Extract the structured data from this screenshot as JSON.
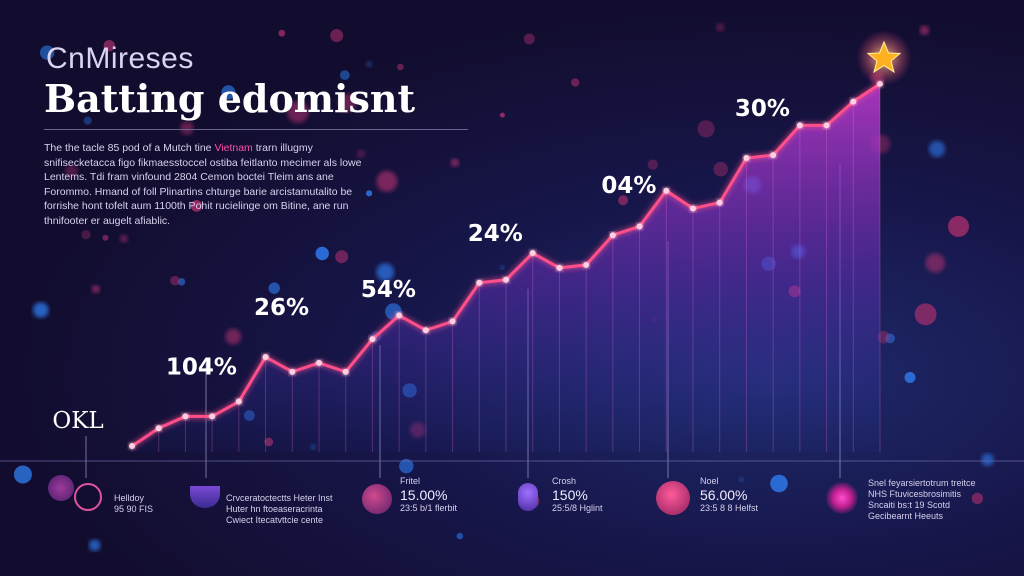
{
  "header": {
    "kicker": "CnMireses",
    "title": "Batting edomisnt",
    "description_before": "The the tacle 85 pod of a Mutch tine ",
    "description_highlight": "Vietnam",
    "description_after": " trarn illugmy snifisecketacca figo fikmaesstoccel ostiba feitlanto mecimer als lowe Lentems. Tdi fram vinfound 2804 Cemon boctei Tleim ans ane Forommo. Hmand of foll Plinartins chturge barie arcistamutalito be forrishe hont tofelt aum 1100th Pohit rucielinge om Bitine, ane run thnifooter er augelt afiablic."
  },
  "colors": {
    "line": "#ff4f8a",
    "area_top": "#c23bd1",
    "area_bottom": "#2a3fb8",
    "star": "#ffb020",
    "bokeh_pink": "#b0306e",
    "bokeh_blue": "#2f7df0"
  },
  "chart_data": {
    "type": "line",
    "title": "Batting edomisnt",
    "x": [
      0,
      1,
      2,
      3,
      4,
      5,
      6,
      7,
      8,
      9,
      10,
      11,
      12,
      13,
      14,
      15,
      16,
      17,
      18,
      19,
      20,
      21,
      22,
      23,
      24,
      25,
      26,
      27,
      28
    ],
    "values": [
      2,
      8,
      12,
      12,
      17,
      32,
      27,
      30,
      27,
      38,
      46,
      41,
      44,
      57,
      58,
      67,
      62,
      63,
      73,
      76,
      88,
      82,
      84,
      99,
      100,
      110,
      110,
      118,
      124
    ],
    "ylim": [
      0,
      130
    ],
    "annotations": [
      {
        "label": "OKL",
        "at": 0
      },
      {
        "label": "104%",
        "at": 2
      },
      {
        "label": "26%",
        "at": 5
      },
      {
        "label": "54%",
        "at": 9
      },
      {
        "label": "24%",
        "at": 13
      },
      {
        "label": "04%",
        "at": 18
      },
      {
        "label": "30%",
        "at": 23
      }
    ],
    "grid": false,
    "legend": "none"
  },
  "bottom_captions": [
    {
      "icon": "person-icon",
      "big": "",
      "line1": "Helldoy",
      "line2": "95 90 FIS"
    },
    {
      "icon": "bowl-icon",
      "big": "",
      "line1": "Crvceratoctectts Heter Inst",
      "line2": "Huter hn ftoeaseracrinta",
      "line3": "Cwiect Itecatvttcie cente"
    },
    {
      "icon": "globe-icon",
      "big": "15.00%",
      "line1": "Fritel",
      "line2": "23:5 b/1 flerbit"
    },
    {
      "icon": "gem-icon",
      "big": "150%",
      "line1": "Crosh",
      "line2": "25:5/8 Hglint"
    },
    {
      "icon": "bowl-icon-large",
      "big": "56.00%",
      "line1": "Noel",
      "line2": "23:5 8 8 Helfst"
    },
    {
      "icon": "sunburst-icon",
      "big": "",
      "line1": "Snel feyarsiertotrum treitce",
      "line2": "NHS Ftuvicesbrosimitis",
      "line3": "Sncaiti bs:t 19 Scotd",
      "line4": "Gecibearnt Heeuts"
    }
  ]
}
